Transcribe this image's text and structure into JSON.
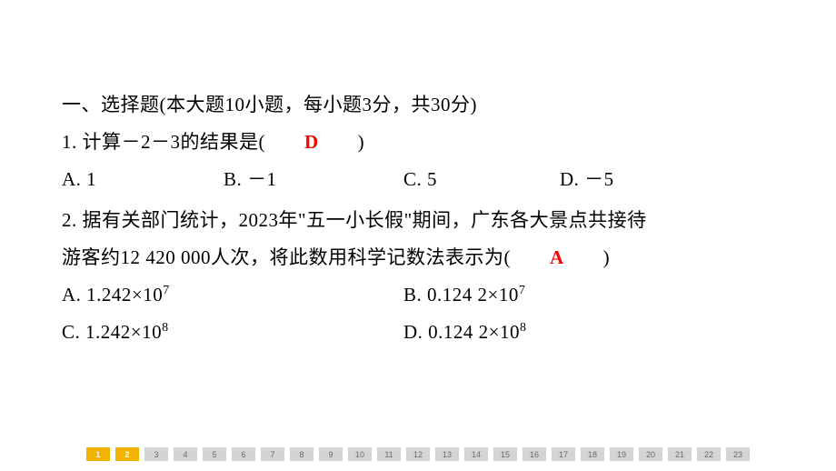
{
  "section": {
    "heading": "一、选择题(本大题10小题，每小题3分，共30分)"
  },
  "q1": {
    "stem_before": "1. 计算－2－3的结果是(　　",
    "answer": "D",
    "stem_after": "　　)",
    "opt_a": "A. 1",
    "opt_b": "B. －1",
    "opt_c": "C. 5",
    "opt_d": "D. －5"
  },
  "q2": {
    "line1": "2. 据有关部门统计，2023年\"五一小长假\"期间，广东各大景点共接待",
    "line2_before": "游客约12 420 000人次，将此数用科学记数法表示为(　　",
    "answer": "A",
    "line2_after": "　　)",
    "opt_a_pre": "A. 1.242×10",
    "opt_a_sup": "7",
    "opt_b_pre": "B. 0.124 2×10",
    "opt_b_sup": "7",
    "opt_c_pre": "C. 1.242×10",
    "opt_c_sup": "8",
    "opt_d_pre": "D. 0.124 2×10",
    "opt_d_sup": "8"
  },
  "pagination": {
    "total": 23,
    "active": [
      1,
      2
    ]
  },
  "style": {
    "text_color": "#000000",
    "answer_color": "#ff0000",
    "page_bg": "#d4d4d4",
    "page_active_bg": "#f2b200",
    "line_fontsize": 21
  }
}
